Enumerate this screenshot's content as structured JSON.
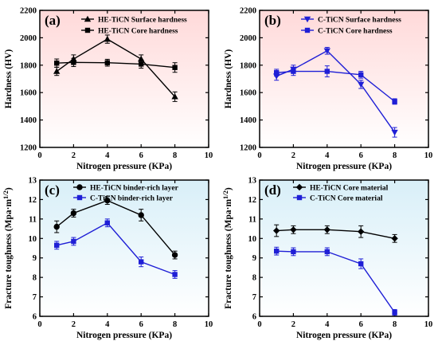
{
  "chart_data": [
    {
      "type": "line",
      "panel_label": "(a)",
      "x": [
        1,
        2,
        4,
        6,
        8
      ],
      "xlabel": "Nitrogen pressure (KPa)",
      "ylabel": "Hardness (HV)",
      "xlim": [
        0,
        10
      ],
      "ylim": [
        1200,
        2200
      ],
      "xticks": [
        0,
        2,
        4,
        6,
        8,
        10
      ],
      "yticks": [
        1200,
        1400,
        1600,
        1800,
        2000,
        2200
      ],
      "legend_position": "top-left",
      "background": [
        "#ffd9d9",
        "#ffffff"
      ],
      "series": [
        {
          "name": "HE-TiCN Surface hardness",
          "marker": "triangle-up",
          "color": "#000000",
          "values": [
            1755,
            1845,
            1990,
            1845,
            1570
          ],
          "errors": [
            30,
            30,
            30,
            30,
            35
          ]
        },
        {
          "name": "HE-TiCN   Core   hardness",
          "marker": "square",
          "color": "#000000",
          "values": [
            1815,
            1820,
            1818,
            1808,
            1783
          ],
          "errors": [
            30,
            30,
            25,
            30,
            35
          ]
        }
      ]
    },
    {
      "type": "line",
      "panel_label": "(b)",
      "x": [
        1,
        2,
        4,
        6,
        8
      ],
      "xlabel": "Nitrogen pressure (KPa)",
      "ylabel": "Hardness (HV)",
      "xlim": [
        0,
        10
      ],
      "ylim": [
        1200,
        2200
      ],
      "xticks": [
        0,
        2,
        4,
        6,
        8,
        10
      ],
      "yticks": [
        1200,
        1400,
        1600,
        1800,
        2000,
        2200
      ],
      "legend_position": "top-right",
      "background": [
        "#ffd9d9",
        "#ffffff"
      ],
      "series": [
        {
          "name": "C-TiCN Surface hardness",
          "marker": "triangle-down",
          "color": "#1f1fd6",
          "values": [
            1720,
            1770,
            1905,
            1660,
            1310
          ],
          "errors": [
            30,
            30,
            25,
            30,
            35
          ]
        },
        {
          "name": "C-TiCN   Core   hardness",
          "marker": "square",
          "color": "#1f1fd6",
          "values": [
            1745,
            1755,
            1755,
            1730,
            1535
          ],
          "errors": [
            25,
            30,
            40,
            25,
            20
          ]
        }
      ]
    },
    {
      "type": "line",
      "panel_label": "(c)",
      "x": [
        1,
        2,
        4,
        6,
        8
      ],
      "xlabel": "Nitrogen pressure (KPa)",
      "ylabel": "Fracture toughness (Mpa·m1/2)",
      "ylabel_main": "Fracture toughness (Mpa·m",
      "ylabel_sup": "1/2",
      "ylabel_close": ")",
      "xlim": [
        0,
        10
      ],
      "ylim": [
        6,
        13
      ],
      "xticks": [
        0,
        2,
        4,
        6,
        8,
        10
      ],
      "yticks": [
        6,
        7,
        8,
        9,
        10,
        11,
        12,
        13
      ],
      "legend_position": "top-right",
      "background": [
        "#d8eff8",
        "#ffffff"
      ],
      "series": [
        {
          "name": "HE-TiCN binder-rich layer",
          "marker": "circle",
          "color": "#000000",
          "values": [
            10.6,
            11.3,
            11.95,
            11.2,
            9.15
          ],
          "errors": [
            0.3,
            0.2,
            0.2,
            0.3,
            0.2
          ]
        },
        {
          "name": "C-TiCN  binder-rich layer",
          "marker": "square",
          "color": "#1f1fd6",
          "values": [
            9.65,
            9.85,
            10.8,
            8.8,
            8.15
          ],
          "errors": [
            0.2,
            0.2,
            0.2,
            0.25,
            0.2
          ]
        }
      ]
    },
    {
      "type": "line",
      "panel_label": "(d)",
      "x": [
        1,
        2,
        4,
        6,
        8
      ],
      "xlabel": "Nitrogen pressure (KPa)",
      "ylabel": "Fracture toughness (Mpa·m1/2)",
      "ylabel_main": "Fracture toughness (Mpa·m",
      "ylabel_sup": "1/2",
      "ylabel_close": ")",
      "xlim": [
        0,
        10
      ],
      "ylim": [
        6,
        13
      ],
      "xticks": [
        0,
        2,
        4,
        6,
        8,
        10
      ],
      "yticks": [
        6,
        7,
        8,
        9,
        10,
        11,
        12,
        13
      ],
      "legend_position": "top-right",
      "background": [
        "#d8eff8",
        "#ffffff"
      ],
      "series": [
        {
          "name": "HE-TiCN Core material",
          "marker": "diamond",
          "color": "#000000",
          "values": [
            10.4,
            10.45,
            10.45,
            10.35,
            10.0
          ],
          "errors": [
            0.3,
            0.2,
            0.2,
            0.3,
            0.2
          ]
        },
        {
          "name": "C-TiCN    Core material",
          "marker": "square",
          "color": "#1f1fd6",
          "values": [
            9.35,
            9.32,
            9.32,
            8.7,
            6.2
          ],
          "errors": [
            0.2,
            0.2,
            0.2,
            0.25,
            0.15
          ]
        }
      ]
    }
  ]
}
